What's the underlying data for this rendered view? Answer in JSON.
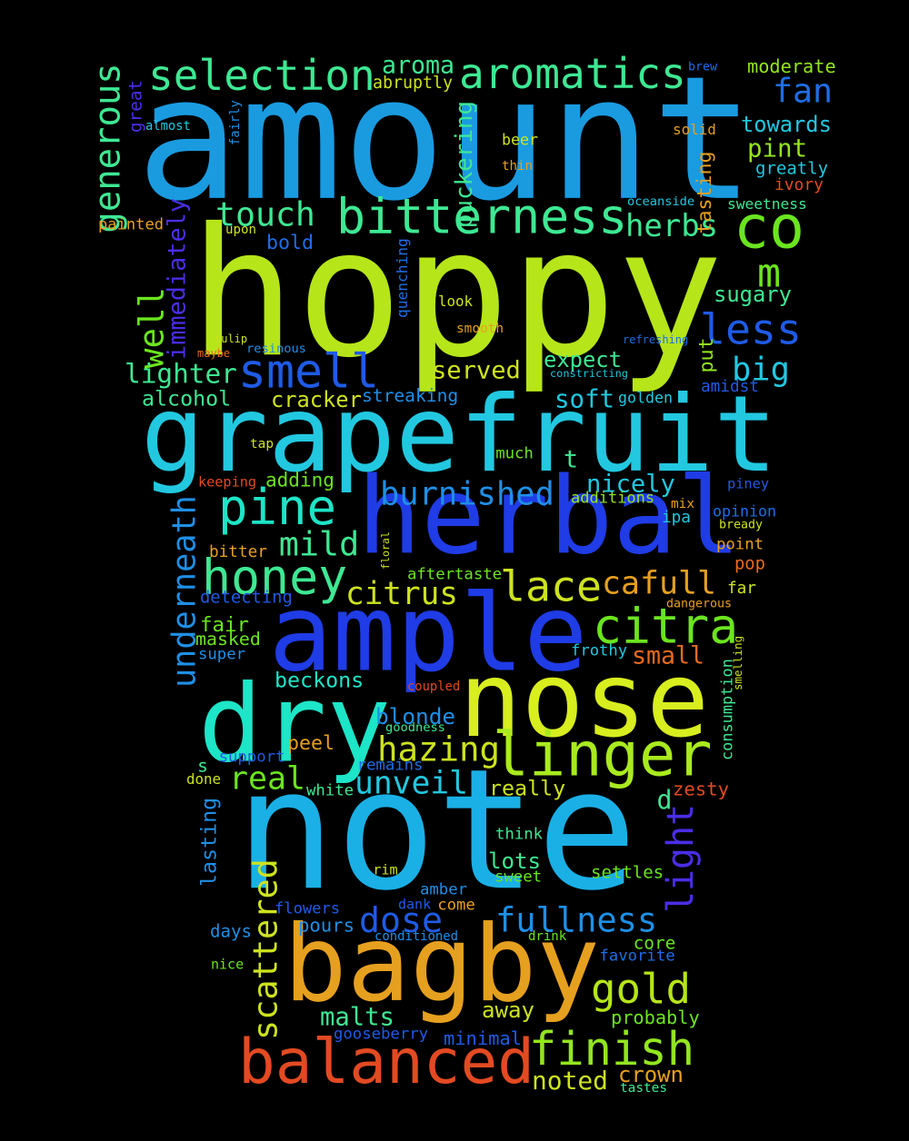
{
  "words": [
    {
      "text": "amount",
      "color": "#1a9be0"
    },
    {
      "text": "hoppy",
      "color": "#b6e51a"
    },
    {
      "text": "grapefruit",
      "color": "#22c8e0"
    },
    {
      "text": "herbal",
      "color": "#1f3ce6"
    },
    {
      "text": "note",
      "color": "#1ab0e6"
    },
    {
      "text": "ample",
      "color": "#1f3ce6"
    },
    {
      "text": "nose",
      "color": "#d8ee1f"
    },
    {
      "text": "dry",
      "color": "#1de5c7"
    },
    {
      "text": "bagby",
      "color": "#e6a01f"
    },
    {
      "text": "balanced",
      "color": "#e34a22"
    },
    {
      "text": "bitterness",
      "color": "#3ee893"
    },
    {
      "text": "selection",
      "color": "#3ee893"
    },
    {
      "text": "aromatics",
      "color": "#3ee893"
    },
    {
      "text": "co",
      "color": "#6be51f"
    },
    {
      "text": "smell",
      "color": "#1f5be6"
    },
    {
      "text": "linger",
      "color": "#a9ea1f"
    },
    {
      "text": "pine",
      "color": "#1de5c7"
    },
    {
      "text": "honey",
      "color": "#3ee893"
    },
    {
      "text": "citra",
      "color": "#6be51f"
    },
    {
      "text": "lace",
      "color": "#cde31f"
    },
    {
      "text": "cafull",
      "color": "#e6a01f"
    },
    {
      "text": "finish",
      "color": "#93e51f"
    },
    {
      "text": "gold",
      "color": "#b6e51a"
    },
    {
      "text": "fullness",
      "color": "#1f8fe6"
    },
    {
      "text": "dose",
      "color": "#1f5be6"
    },
    {
      "text": "light",
      "color": "#4a2ee6"
    },
    {
      "text": "scattered",
      "color": "#cde31f"
    },
    {
      "text": "underneath",
      "color": "#1f8fe6"
    },
    {
      "text": "well",
      "color": "#6be51f"
    },
    {
      "text": "less",
      "color": "#1f5be6"
    },
    {
      "text": "m",
      "color": "#6be51f"
    },
    {
      "text": "touch",
      "color": "#3ee893"
    },
    {
      "text": "herbs",
      "color": "#3ee893"
    },
    {
      "text": "fan",
      "color": "#1f6ee6"
    },
    {
      "text": "generous",
      "color": "#3ee893"
    },
    {
      "text": "burnished",
      "color": "#1f8fe6"
    },
    {
      "text": "hazing",
      "color": "#cde31f"
    },
    {
      "text": "unveil",
      "color": "#22c8e0"
    },
    {
      "text": "real",
      "color": "#6be51f"
    },
    {
      "text": "mild",
      "color": "#3ee893"
    },
    {
      "text": "citrus",
      "color": "#cde31f"
    },
    {
      "text": "big",
      "color": "#22c8e0"
    },
    {
      "text": "aroma",
      "color": "#3ee893"
    },
    {
      "text": "moderate",
      "color": "#93e51f"
    },
    {
      "text": "towards",
      "color": "#22c8e0"
    },
    {
      "text": "pint",
      "color": "#93e51f"
    },
    {
      "text": "sugary",
      "color": "#3ee893"
    },
    {
      "text": "lighter",
      "color": "#3ee893"
    },
    {
      "text": "alcohol",
      "color": "#3ee893"
    },
    {
      "text": "cracker",
      "color": "#cde31f"
    },
    {
      "text": "served",
      "color": "#cde31f"
    },
    {
      "text": "expect",
      "color": "#3ee893"
    },
    {
      "text": "soft",
      "color": "#22c8e0"
    },
    {
      "text": "nicely",
      "color": "#22c8e0"
    },
    {
      "text": "blonde",
      "color": "#1f8fe6"
    },
    {
      "text": "beckons",
      "color": "#1de5c7"
    },
    {
      "text": "malts",
      "color": "#3ee893"
    },
    {
      "text": "away",
      "color": "#cde31f"
    },
    {
      "text": "probably",
      "color": "#6be51f"
    },
    {
      "text": "crown",
      "color": "#e6a01f"
    },
    {
      "text": "noted",
      "color": "#cde31f"
    },
    {
      "text": "small",
      "color": "#e66b1f"
    },
    {
      "text": "lots",
      "color": "#3ee893"
    },
    {
      "text": "really",
      "color": "#cde31f"
    },
    {
      "text": "pours",
      "color": "#1f8fe6"
    },
    {
      "text": "d",
      "color": "#3ee893"
    },
    {
      "text": "t",
      "color": "#3ee893"
    },
    {
      "text": "immediately",
      "color": "#4a2ee6"
    },
    {
      "text": "puckering",
      "color": "#3ee893"
    },
    {
      "text": "adding",
      "color": "#6be51f"
    },
    {
      "text": "streaking",
      "color": "#1f8fe6"
    },
    {
      "text": "bold",
      "color": "#1f6ee6"
    },
    {
      "text": "peel",
      "color": "#e6a01f"
    },
    {
      "text": "fair",
      "color": "#6be51f"
    },
    {
      "text": "masked",
      "color": "#6be51f"
    },
    {
      "text": "minimal",
      "color": "#1f5be6"
    },
    {
      "text": "lasting",
      "color": "#1f8fe6"
    },
    {
      "text": "settles",
      "color": "#6be51f"
    },
    {
      "text": "zesty",
      "color": "#e34a22"
    },
    {
      "text": "consumption",
      "color": "#3ee893"
    },
    {
      "text": "abruptly",
      "color": "#cde31f"
    },
    {
      "text": "golden",
      "color": "#22c8e0"
    },
    {
      "text": "amidst",
      "color": "#1f5be6"
    },
    {
      "text": "greatly",
      "color": "#22c8e0"
    },
    {
      "text": "ivory",
      "color": "#e34a22"
    },
    {
      "text": "beer",
      "color": "#cde31f"
    },
    {
      "text": "solid",
      "color": "#e6a01f"
    },
    {
      "text": "sweetness",
      "color": "#3ee893"
    },
    {
      "text": "tasting",
      "color": "#e6a01f"
    },
    {
      "text": "thin",
      "color": "#e6a01f"
    },
    {
      "text": "brew",
      "color": "#1f6ee6"
    },
    {
      "text": "great",
      "color": "#4a2ee6"
    },
    {
      "text": "almost",
      "color": "#22c8e0"
    },
    {
      "text": "fairly",
      "color": "#1f8fe6"
    },
    {
      "text": "painted",
      "color": "#e6a01f"
    },
    {
      "text": "upon",
      "color": "#cde31f"
    },
    {
      "text": "oceanside",
      "color": "#22c8e0"
    },
    {
      "text": "quenching",
      "color": "#1f6ee6"
    },
    {
      "text": "look",
      "color": "#cde31f"
    },
    {
      "text": "refreshing",
      "color": "#1f6ee6"
    },
    {
      "text": "tulip",
      "color": "#cde31f"
    },
    {
      "text": "maybe",
      "color": "#e66b1f"
    },
    {
      "text": "resinous",
      "color": "#1f8fe6"
    },
    {
      "text": "smooth",
      "color": "#e6a01f"
    },
    {
      "text": "constricting",
      "color": "#22c8e0"
    },
    {
      "text": "put",
      "color": "#93e51f"
    },
    {
      "text": "tap",
      "color": "#cde31f"
    },
    {
      "text": "keeping",
      "color": "#e34a22"
    },
    {
      "text": "much",
      "color": "#6be51f"
    },
    {
      "text": "additions",
      "color": "#93e51f"
    },
    {
      "text": "mix",
      "color": "#e6a01f"
    },
    {
      "text": "ipa",
      "color": "#22c8e0"
    },
    {
      "text": "opinion",
      "color": "#1f6ee6"
    },
    {
      "text": "bready",
      "color": "#cde31f"
    },
    {
      "text": "piney",
      "color": "#1f5be6"
    },
    {
      "text": "point",
      "color": "#e6a01f"
    },
    {
      "text": "pop",
      "color": "#e66b1f"
    },
    {
      "text": "far",
      "color": "#cde31f"
    },
    {
      "text": "dangerous",
      "color": "#e6a01f"
    },
    {
      "text": "bitter",
      "color": "#e6a01f"
    },
    {
      "text": "floral",
      "color": "#cde31f"
    },
    {
      "text": "aftertaste",
      "color": "#6be51f"
    },
    {
      "text": "detecting",
      "color": "#1f5be6"
    },
    {
      "text": "super",
      "color": "#1f8fe6"
    },
    {
      "text": "frothy",
      "color": "#22c8e0"
    },
    {
      "text": "coupled",
      "color": "#e34a22"
    },
    {
      "text": "smelling",
      "color": "#cde31f"
    },
    {
      "text": "goodness",
      "color": "#3ee893"
    },
    {
      "text": "remains",
      "color": "#1f6ee6"
    },
    {
      "text": "support",
      "color": "#1f5be6"
    },
    {
      "text": "s",
      "color": "#3ee893"
    },
    {
      "text": "done",
      "color": "#cde31f"
    },
    {
      "text": "white",
      "color": "#3ee893"
    },
    {
      "text": "think",
      "color": "#3ee893"
    },
    {
      "text": "rim",
      "color": "#cde31f"
    },
    {
      "text": "sweet",
      "color": "#6be51f"
    },
    {
      "text": "amber",
      "color": "#1f8fe6"
    },
    {
      "text": "flowers",
      "color": "#1f5be6"
    },
    {
      "text": "dank",
      "color": "#1f5be6"
    },
    {
      "text": "come",
      "color": "#e6a01f"
    },
    {
      "text": "days",
      "color": "#1f8fe6"
    },
    {
      "text": "conditioned",
      "color": "#1f8fe6"
    },
    {
      "text": "drink",
      "color": "#6be51f"
    },
    {
      "text": "core",
      "color": "#6be51f"
    },
    {
      "text": "favorite",
      "color": "#1f6ee6"
    },
    {
      "text": "nice",
      "color": "#6be51f"
    },
    {
      "text": "gooseberry",
      "color": "#1f5be6"
    },
    {
      "text": "tastes",
      "color": "#3ee893"
    }
  ]
}
